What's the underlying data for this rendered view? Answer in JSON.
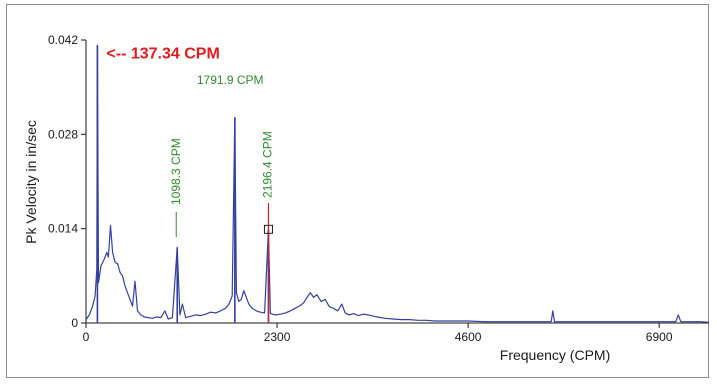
{
  "chart_data": {
    "type": "line",
    "title": "",
    "xlabel": "Frequency (CPM)",
    "ylabel": "Pk Velocity in in/sec",
    "xlim": [
      0,
      7500
    ],
    "ylim": [
      0,
      0.042
    ],
    "x_ticks": [
      0,
      2300,
      4600,
      6900
    ],
    "x_tick_labels": [
      "0",
      "2300",
      "4600",
      "6900"
    ],
    "y_ticks": [
      0,
      0.014,
      0.028,
      0.042
    ],
    "y_tick_labels": [
      "0",
      "0.014",
      "0.028",
      "0.042"
    ],
    "grid": false,
    "legend": "none",
    "series_color": "#3440a0",
    "peaks": [
      {
        "x": 137.34,
        "y": 0.0412
      },
      {
        "x": 1098.3,
        "y": 0.0112
      },
      {
        "x": 1791.9,
        "y": 0.0305
      },
      {
        "x": 2196.4,
        "y": 0.0139
      }
    ],
    "spectrum": [
      [
        0,
        0.0005
      ],
      [
        40,
        0.0012
      ],
      [
        80,
        0.0025
      ],
      [
        110,
        0.004
      ],
      [
        130,
        0.008
      ],
      [
        137.34,
        0.0412
      ],
      [
        150,
        0.006
      ],
      [
        180,
        0.0085
      ],
      [
        220,
        0.0095
      ],
      [
        250,
        0.0105
      ],
      [
        270,
        0.0098
      ],
      [
        295,
        0.0145
      ],
      [
        320,
        0.0105
      ],
      [
        350,
        0.009
      ],
      [
        380,
        0.0088
      ],
      [
        410,
        0.0075
      ],
      [
        440,
        0.007
      ],
      [
        470,
        0.0055
      ],
      [
        500,
        0.0045
      ],
      [
        530,
        0.0035
      ],
      [
        560,
        0.0025
      ],
      [
        590,
        0.0062
      ],
      [
        620,
        0.0018
      ],
      [
        660,
        0.0012
      ],
      [
        700,
        0.0009
      ],
      [
        750,
        0.0008
      ],
      [
        800,
        0.0007
      ],
      [
        850,
        0.0009
      ],
      [
        900,
        0.0008
      ],
      [
        950,
        0.0018
      ],
      [
        990,
        0.0006
      ],
      [
        1040,
        0.0008
      ],
      [
        1098.3,
        0.0112
      ],
      [
        1130,
        0.0012
      ],
      [
        1160,
        0.0028
      ],
      [
        1200,
        0.0008
      ],
      [
        1260,
        0.001
      ],
      [
        1320,
        0.0012
      ],
      [
        1380,
        0.0011
      ],
      [
        1440,
        0.0013
      ],
      [
        1500,
        0.0016
      ],
      [
        1560,
        0.0015
      ],
      [
        1620,
        0.0018
      ],
      [
        1680,
        0.0022
      ],
      [
        1720,
        0.0028
      ],
      [
        1760,
        0.004
      ],
      [
        1791.9,
        0.0305
      ],
      [
        1810,
        0.0045
      ],
      [
        1840,
        0.0032
      ],
      [
        1870,
        0.0035
      ],
      [
        1900,
        0.0048
      ],
      [
        1930,
        0.0038
      ],
      [
        1960,
        0.0028
      ],
      [
        2000,
        0.0022
      ],
      [
        2050,
        0.0018
      ],
      [
        2100,
        0.0016
      ],
      [
        2150,
        0.0015
      ],
      [
        2196.4,
        0.0139
      ],
      [
        2220,
        0.0014
      ],
      [
        2280,
        0.0012
      ],
      [
        2340,
        0.0013
      ],
      [
        2400,
        0.0015
      ],
      [
        2460,
        0.0018
      ],
      [
        2520,
        0.0022
      ],
      [
        2580,
        0.0026
      ],
      [
        2620,
        0.003
      ],
      [
        2660,
        0.0038
      ],
      [
        2700,
        0.0045
      ],
      [
        2740,
        0.0038
      ],
      [
        2780,
        0.0042
      ],
      [
        2830,
        0.0032
      ],
      [
        2880,
        0.0035
      ],
      [
        2930,
        0.0024
      ],
      [
        2980,
        0.0022
      ],
      [
        3030,
        0.0018
      ],
      [
        3080,
        0.0028
      ],
      [
        3120,
        0.0015
      ],
      [
        3170,
        0.0012
      ],
      [
        3220,
        0.0014
      ],
      [
        3280,
        0.0011
      ],
      [
        3340,
        0.0013
      ],
      [
        3400,
        0.0012
      ],
      [
        3500,
        0.0009
      ],
      [
        3600,
        0.0007
      ],
      [
        3700,
        0.0006
      ],
      [
        3800,
        0.0005
      ],
      [
        3900,
        0.0005
      ],
      [
        4000,
        0.0004
      ],
      [
        4100,
        0.0004
      ],
      [
        4200,
        0.0003
      ],
      [
        4400,
        0.0003
      ],
      [
        4600,
        0.0003
      ],
      [
        4800,
        0.0002
      ],
      [
        5000,
        0.0002
      ],
      [
        5300,
        0.0002
      ],
      [
        5600,
        0.0002
      ],
      [
        5620,
        0.0018
      ],
      [
        5640,
        0.0002
      ],
      [
        5900,
        0.0002
      ],
      [
        6200,
        0.0002
      ],
      [
        6500,
        0.0002
      ],
      [
        6800,
        0.0002
      ],
      [
        7100,
        0.0002
      ],
      [
        7130,
        0.0012
      ],
      [
        7160,
        0.0002
      ],
      [
        7400,
        0.0002
      ],
      [
        7500,
        0.0001
      ]
    ],
    "annotations": {
      "peak_1": "<-- 137.34 CPM",
      "peak_2": "1791.9 CPM",
      "peak_3": "1098.3 CPM",
      "peak_4": "2196.4 CPM"
    },
    "annotation_colors": {
      "red": "#e01b1b",
      "green": "#2e8b2e",
      "cursor": "#cc2222"
    }
  }
}
